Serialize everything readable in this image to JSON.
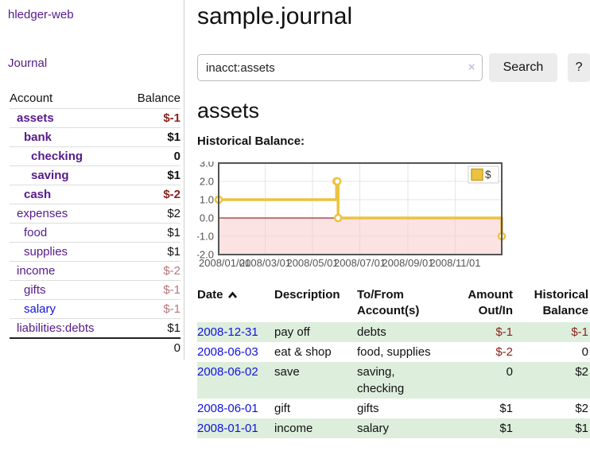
{
  "colors": {
    "link_visited": "#551a8b",
    "link_new": "#1212dd",
    "negative_strong": "#8b231e",
    "negative_light": "#b87577",
    "row_stripe_green": "#ddeedd",
    "divider": "#cccccc",
    "chart_line": "#edc240",
    "chart_marker_fill": "#ffffff",
    "chart_zero_line": "#800000",
    "chart_negative_fill": "#f8c8c8",
    "chart_grid": "#e6e6e6",
    "chart_border": "#545454",
    "chart_tick_text": "#545454"
  },
  "sidebar": {
    "app_title": "hledger-web",
    "journal_label": "Journal",
    "accounts": {
      "col_account": "Account",
      "col_balance": "Balance",
      "rows": [
        {
          "name": "assets",
          "balance": "$-1",
          "depth": 1,
          "bold": true,
          "bal": "neg"
        },
        {
          "name": "bank",
          "balance": "$1",
          "depth": 2,
          "bold": true,
          "bal": "pos"
        },
        {
          "name": "checking",
          "balance": "0",
          "depth": 3,
          "bold": true,
          "bal": "pos"
        },
        {
          "name": "saving",
          "balance": "$1",
          "depth": 3,
          "bold": true,
          "bal": "pos"
        },
        {
          "name": "cash",
          "balance": "$-2",
          "depth": 2,
          "bold": true,
          "bal": "neg"
        },
        {
          "name": "expenses",
          "balance": "$2",
          "depth": 1,
          "bold": false,
          "bal": "pos"
        },
        {
          "name": "food",
          "balance": "$1",
          "depth": 2,
          "bold": false,
          "bal": "pos"
        },
        {
          "name": "supplies",
          "balance": "$1",
          "depth": 2,
          "bold": false,
          "bal": "pos"
        },
        {
          "name": "income",
          "balance": "$-2",
          "depth": 1,
          "bold": false,
          "bal": "negl"
        },
        {
          "name": "gifts",
          "balance": "$-1",
          "depth": 2,
          "bold": false,
          "bal": "negl"
        },
        {
          "name": "salary",
          "balance": "$-1",
          "depth": 2,
          "bold": false,
          "bal": "negl",
          "link": "new"
        },
        {
          "name": "liabilities:debts",
          "balance": "$1",
          "depth": 1,
          "bold": false,
          "bal": "pos"
        }
      ],
      "total": "0"
    }
  },
  "main": {
    "title": "sample.journal",
    "search": {
      "value": "inacct:assets",
      "clear_icon": "×",
      "button_label": "Search",
      "help_label": "?"
    },
    "account_heading": "assets",
    "chart_label": "Historical Balance:"
  },
  "chart_data": {
    "type": "line",
    "step": true,
    "title": "Historical Balance",
    "legend": [
      {
        "label": "$",
        "color": "#edc240"
      }
    ],
    "legend_position": "top-right",
    "grid": true,
    "negative_region_shaded": true,
    "x_range": [
      "2008-01-01",
      "2008-12-31"
    ],
    "ylim": [
      -2,
      3
    ],
    "yticks": [
      {
        "v": 3,
        "label": "3.0"
      },
      {
        "v": 2,
        "label": "2.0"
      },
      {
        "v": 1,
        "label": "1.0"
      },
      {
        "v": 0,
        "label": "0.0"
      },
      {
        "v": -1,
        "label": "-1.0"
      },
      {
        "v": -2,
        "label": "-2.0"
      }
    ],
    "xticks": [
      {
        "date": "2008-01-01",
        "label": "2008/01/01"
      },
      {
        "date": "2008-03-01",
        "label": "2008/03/01"
      },
      {
        "date": "2008-05-01",
        "label": "2008/05/01"
      },
      {
        "date": "2008-07-01",
        "label": "2008/07/01"
      },
      {
        "date": "2008-09-01",
        "label": "2008/09/01"
      },
      {
        "date": "2008-11-01",
        "label": "2008/11/01"
      }
    ],
    "series": [
      {
        "name": "$",
        "points": [
          {
            "date": "2008-01-01",
            "value": 1
          },
          {
            "date": "2008-06-01",
            "value": 2
          },
          {
            "date": "2008-06-02",
            "value": 2
          },
          {
            "date": "2008-06-03",
            "value": 0
          },
          {
            "date": "2008-12-31",
            "value": -1
          }
        ]
      }
    ]
  },
  "register": {
    "headers": {
      "date": "Date",
      "sort_icon": "chevron-up",
      "description": "Description",
      "accounts": "To/From Account(s)",
      "amount": "Amount Out/In",
      "balance": "Historical Balance"
    },
    "rows": [
      {
        "date": "2008-12-31",
        "description": "pay off",
        "accounts": "debts",
        "amount": "$-1",
        "balance": "$-1",
        "amount_neg": true,
        "balance_neg": true
      },
      {
        "date": "2008-06-03",
        "description": "eat & shop",
        "accounts": "food, supplies",
        "amount": "$-2",
        "balance": "0",
        "amount_neg": true,
        "balance_neg": false
      },
      {
        "date": "2008-06-02",
        "description": "save",
        "accounts": "saving, checking",
        "amount": "0",
        "balance": "$2",
        "amount_neg": false,
        "balance_neg": false
      },
      {
        "date": "2008-06-01",
        "description": "gift",
        "accounts": "gifts",
        "amount": "$1",
        "balance": "$2",
        "amount_neg": false,
        "balance_neg": false
      },
      {
        "date": "2008-01-01",
        "description": "income",
        "accounts": "salary",
        "amount": "$1",
        "balance": "$1",
        "amount_neg": false,
        "balance_neg": false
      }
    ]
  }
}
